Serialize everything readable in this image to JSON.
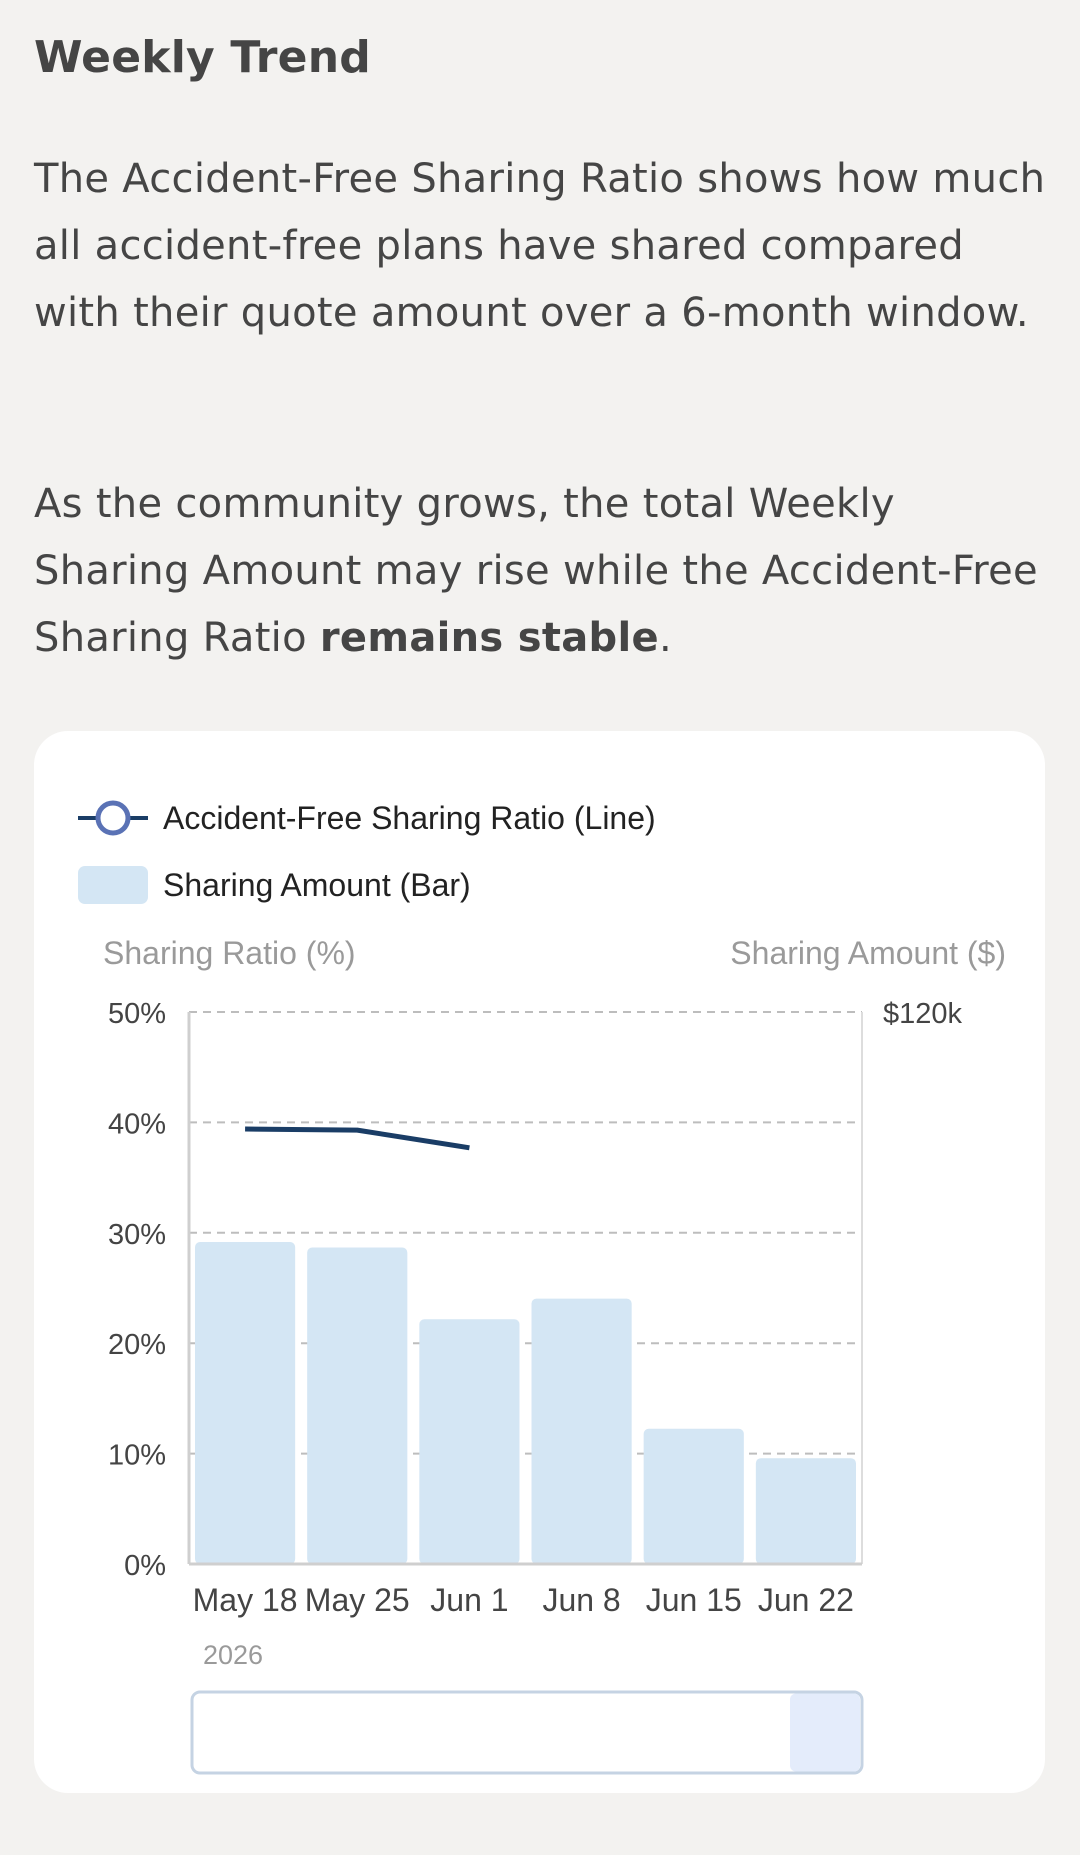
{
  "header": {
    "title": "Weekly Trend"
  },
  "intro": {
    "paragraph1": "The Accident-Free Sharing Ratio shows how much all accident-free plans have shared compared with their quote amount over a 6-month window.",
    "paragraph2_start": "As the community grows, the total Weekly Sharing Amount may rise while the Accident-Free Sharing Ratio ",
    "paragraph2_bold": "remains stable",
    "paragraph2_end": "."
  },
  "chart_data": {
    "type": "bar",
    "legend": {
      "line_label": "Accident-Free Sharing Ratio (Line)",
      "bar_label": "Sharing Amount (Bar)"
    },
    "left_axis_title": "Sharing Ratio (%)",
    "right_axis_title": "Sharing Amount ($)",
    "left_axis_ticks": [
      "0%",
      "10%",
      "20%",
      "30%",
      "40%",
      "50%"
    ],
    "right_axis_ticks": [
      "$120k"
    ],
    "ylim_ratio": [
      0,
      50
    ],
    "ylim_amount": [
      0,
      120000
    ],
    "categories": [
      "May 18",
      "May 25",
      "Jun 1",
      "Jun 8",
      "Jun 15",
      "Jun 22"
    ],
    "x_sublabel": "2026",
    "series": [
      {
        "name": "Sharing Amount (Bar)",
        "kind": "bar",
        "axis": "right",
        "values": [
          70000,
          68800,
          53200,
          57700,
          29400,
          23000
        ]
      },
      {
        "name": "Accident-Free Sharing Ratio (Line)",
        "kind": "line",
        "axis": "left",
        "values": [
          39.4,
          39.3,
          37.7,
          null,
          null,
          null
        ]
      }
    ],
    "grid": true,
    "colors": {
      "bar": "#d4e6f4",
      "line": "#1a3d66",
      "legend_marker": "#5a72b5",
      "grid": "#bdbdbd",
      "axis_text": "#444444",
      "axis_title": "#9a9a9a",
      "slider_handle": "#e4ecfb",
      "slider_border": "#c5d3e3"
    }
  }
}
